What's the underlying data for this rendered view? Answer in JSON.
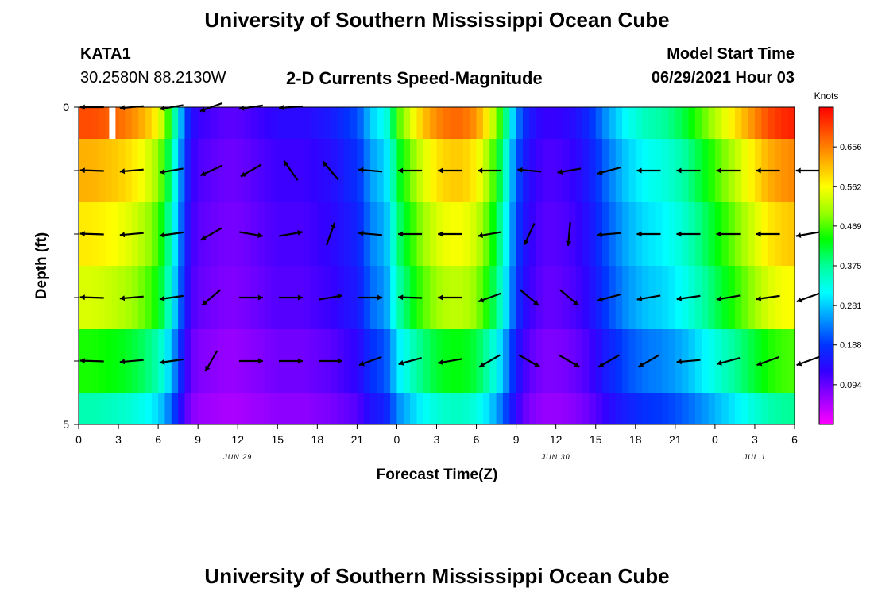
{
  "page": {
    "title": "University of Southern Mississippi Ocean Cube",
    "footer_title": "University of Southern Mississippi Ocean Cube"
  },
  "header": {
    "station_id": "KATA1",
    "coordinates": "30.2580N  88.2130W",
    "plot_title": "2-D Currents Speed-Magnitude",
    "model_start_label": "Model Start Time",
    "model_start_value": "06/29/2021 Hour 03"
  },
  "chart_data": {
    "type": "heatmap",
    "title": "2-D Currents Speed-Magnitude",
    "xlabel": "Forecast Time(Z)",
    "ylabel": "Depth (ft)",
    "x_ticks": [
      "0",
      "3",
      "6",
      "9",
      "12",
      "15",
      "18",
      "21",
      "0",
      "3",
      "6",
      "9",
      "12",
      "15",
      "18",
      "21",
      "0",
      "3",
      "6"
    ],
    "date_labels": [
      {
        "text": "JUN 29",
        "hour": 12
      },
      {
        "text": "JUN 30",
        "hour": 36
      },
      {
        "text": "JUL 1",
        "hour": 51
      }
    ],
    "xlim": [
      0,
      54
    ],
    "y_ticks": [
      {
        "depth": 0,
        "label": "0"
      },
      {
        "depth": 1,
        "label": ""
      },
      {
        "depth": 2,
        "label": ""
      },
      {
        "depth": 3,
        "label": ""
      },
      {
        "depth": 4,
        "label": ""
      },
      {
        "depth": 5,
        "label": "5"
      }
    ],
    "ylim": [
      0,
      5
    ],
    "depth_bins": [
      0,
      0.5,
      1.5,
      2.5,
      3.5,
      4.5,
      5
    ],
    "colorbar": {
      "label": "Knots",
      "vmin": 0.0,
      "vmax": 0.75,
      "ticks": [
        "0.094",
        "0.188",
        "0.281",
        "0.375",
        "0.469",
        "0.562",
        "0.656"
      ],
      "colors": [
        "#ff00ff",
        "#9900ff",
        "#3300ff",
        "#0033ff",
        "#0099ff",
        "#00ffff",
        "#00ff99",
        "#00ff00",
        "#99ff00",
        "#ffff00",
        "#ffaa00",
        "#ff5500",
        "#ff0000"
      ]
    },
    "speed_profile_hours": [
      0,
      1,
      2,
      3,
      4,
      5,
      6,
      6.5,
      7,
      7.5,
      8,
      8.5,
      9,
      10,
      11,
      12,
      13,
      14,
      15,
      16,
      17,
      18,
      19,
      20,
      21,
      21.5,
      22,
      22.5,
      23,
      23.5,
      24,
      25,
      26,
      27,
      28,
      29,
      30,
      31,
      31.5,
      32,
      32.5,
      33,
      33.5,
      34,
      35,
      36,
      37,
      38,
      39,
      40,
      41,
      42,
      43,
      44,
      45,
      46,
      47,
      48,
      49,
      50,
      51,
      52,
      53,
      54
    ],
    "speed_profile_knots": [
      0.62,
      0.62,
      0.61,
      0.6,
      0.58,
      0.55,
      0.5,
      0.45,
      0.37,
      0.28,
      0.19,
      0.13,
      0.11,
      0.1,
      0.09,
      0.09,
      0.1,
      0.11,
      0.12,
      0.12,
      0.12,
      0.13,
      0.14,
      0.16,
      0.18,
      0.21,
      0.25,
      0.27,
      0.28,
      0.32,
      0.41,
      0.48,
      0.54,
      0.58,
      0.6,
      0.6,
      0.57,
      0.5,
      0.44,
      0.38,
      0.3,
      0.22,
      0.17,
      0.14,
      0.11,
      0.11,
      0.12,
      0.14,
      0.18,
      0.23,
      0.27,
      0.3,
      0.32,
      0.33,
      0.35,
      0.38,
      0.42,
      0.46,
      0.5,
      0.54,
      0.58,
      0.62,
      0.64,
      0.65
    ],
    "depth_speed_factor": [
      1.12,
      1.0,
      0.93,
      0.87,
      0.72,
      0.58
    ],
    "vectors": {
      "hours": [
        1,
        4,
        7,
        10,
        13,
        16,
        19,
        22,
        25,
        28,
        31,
        34,
        37,
        40,
        43,
        46,
        49,
        52,
        55
      ],
      "rows": [
        {
          "depth": 0,
          "dir_deg": [
            270,
            265,
            260,
            250,
            262,
            266,
            null,
            null,
            null,
            null,
            null,
            null,
            null,
            null,
            null,
            null,
            null,
            null,
            null
          ]
        },
        {
          "depth": 1.0,
          "dir_deg": [
            272,
            265,
            260,
            245,
            240,
            325,
            320,
            275,
            270,
            270,
            270,
            275,
            260,
            255,
            270,
            270,
            270,
            270,
            270
          ]
        },
        {
          "depth": 2.0,
          "dir_deg": [
            272,
            265,
            262,
            240,
            100,
            80,
            20,
            275,
            270,
            270,
            260,
            205,
            185,
            265,
            270,
            270,
            270,
            270,
            260
          ]
        },
        {
          "depth": 3.0,
          "dir_deg": [
            272,
            265,
            262,
            230,
            90,
            90,
            80,
            90,
            272,
            270,
            250,
            130,
            130,
            255,
            260,
            262,
            260,
            262,
            250
          ]
        },
        {
          "depth": 4.0,
          "dir_deg": [
            272,
            265,
            262,
            210,
            90,
            90,
            90,
            250,
            255,
            260,
            240,
            120,
            120,
            240,
            240,
            265,
            255,
            250,
            250
          ]
        },
        {
          "depth": 5.0,
          "dir_deg": [
            null,
            null,
            null,
            null,
            null,
            null,
            null,
            null,
            null,
            null,
            null,
            null,
            null,
            null,
            null,
            null,
            null,
            null,
            null
          ]
        }
      ]
    }
  }
}
